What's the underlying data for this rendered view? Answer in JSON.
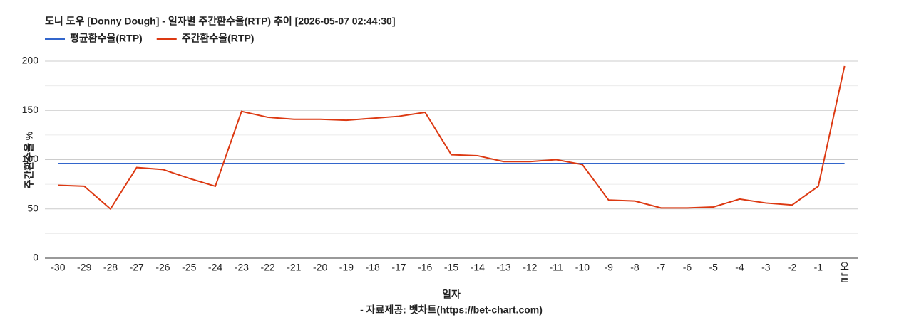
{
  "chart_data": {
    "type": "line",
    "title": "도니 도우 [Donny Dough] - 일자별 주간환수율(RTP) 추이 [2026-05-07 02:44:30]",
    "x_label": "일자",
    "y_label": "주간환수율 %",
    "source": "- 자료제공: 벳차트(https://bet-chart.com)",
    "categories": [
      "-30",
      "-29",
      "-28",
      "-27",
      "-26",
      "-25",
      "-24",
      "-23",
      "-22",
      "-21",
      "-20",
      "-19",
      "-18",
      "-17",
      "-16",
      "-15",
      "-14",
      "-13",
      "-12",
      "-11",
      "-10",
      "-9",
      "-8",
      "-7",
      "-6",
      "-5",
      "-4",
      "-3",
      "-2",
      "-1",
      "오늘"
    ],
    "series": [
      {
        "name": "평균환수율(RTP)",
        "color": "#3366cc",
        "values": [
          96,
          96,
          96,
          96,
          96,
          96,
          96,
          96,
          96,
          96,
          96,
          96,
          96,
          96,
          96,
          96,
          96,
          96,
          96,
          96,
          96,
          96,
          96,
          96,
          96,
          96,
          96,
          96,
          96,
          96,
          96
        ]
      },
      {
        "name": "주간환수율(RTP)",
        "color": "#dc3912",
        "values": [
          74,
          73,
          50,
          92,
          90,
          81,
          73,
          149,
          143,
          141,
          141,
          140,
          142,
          144,
          148,
          105,
          104,
          98,
          98,
          100,
          95,
          59,
          58,
          51,
          51,
          52,
          60,
          56,
          54,
          73,
          195
        ]
      }
    ],
    "ylim": [
      0,
      200
    ],
    "yticks": [
      0,
      50,
      100,
      150,
      200
    ],
    "minor_yticks": [
      25,
      75,
      125,
      175
    ],
    "grid": true,
    "legend": "top-left"
  }
}
